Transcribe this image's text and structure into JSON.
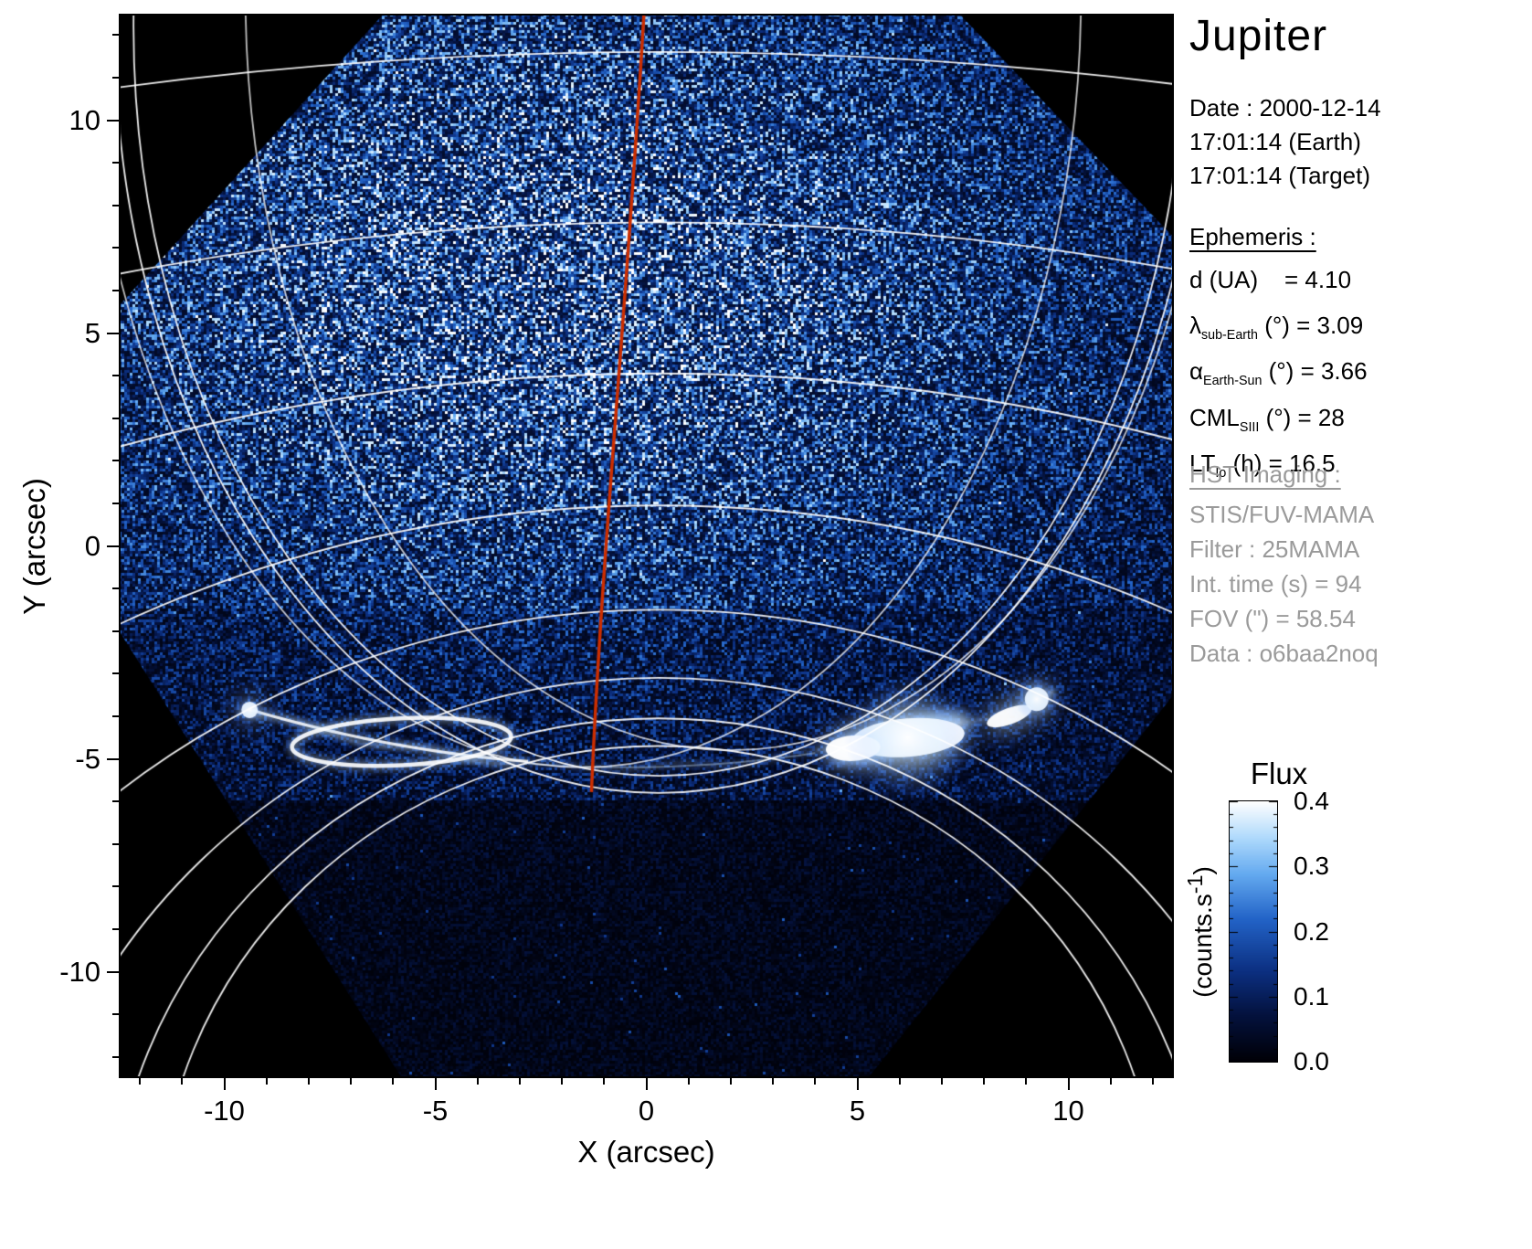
{
  "title": "Jupiter",
  "datetime": {
    "date_line": "Date : 2000-12-14",
    "earth_line": "17:01:14 (Earth)",
    "target_line": "17:01:14 (Target)"
  },
  "ephemeris": {
    "heading": "Ephemeris :",
    "items": [
      {
        "pre": "d (UA)",
        "sub": "",
        "post": "    = 4.10"
      },
      {
        "pre": "λ",
        "sub": "sub-Earth",
        "post": " (°) = 3.09"
      },
      {
        "pre": "α",
        "sub": "Earth-Sun",
        "post": " (°) = 3.66"
      },
      {
        "pre": "CML",
        "sub": "SIII",
        "post": " (°) = 28"
      },
      {
        "pre": "LT",
        "sub": "Io",
        "post": " (h) = 16.5"
      }
    ]
  },
  "hst": {
    "heading": "HST Imaging :",
    "lines": [
      "STIS/FUV-MAMA",
      "Filter : 25MAMA",
      "Int. time (s) = 94",
      "FOV (\") = 58.54",
      "Data : o6baa2noq"
    ]
  },
  "colorbar": {
    "title": "Flux",
    "unit_pre": "(counts.s",
    "unit_sup": "-1",
    "unit_post": ")",
    "ticks": [
      0.0,
      0.1,
      0.2,
      0.3,
      0.4
    ],
    "max": 0.4
  },
  "chart_data": {
    "type": "heatmap",
    "title": "Jupiter",
    "xlabel": "X (arcsec)",
    "ylabel": "Y (arcsec)",
    "xlim": [
      -12.5,
      12.5
    ],
    "ylim": [
      -12.5,
      12.5
    ],
    "xticks": [
      -10,
      -5,
      0,
      5,
      10
    ],
    "yticks": [
      -10,
      -5,
      0,
      5,
      10
    ],
    "flux_range": [
      0.0,
      0.4
    ],
    "flux_unit": "counts.s-1",
    "colormap": "black → dark blue → blue → light blue → white",
    "description": "HST/STIS FUV-MAMA far-ultraviolet image of Jupiter's north polar region; noisy blue detector field (square FOV rotated ~45°, corners of plot black), white planetary limb and latitude/longitude graticule arcs converging toward bottom, bright auroral oval emission arc near y ≈ -4 to -5 arcsec, red central-meridian line from top center to the limb bottom.",
    "features": {
      "aurora_arc": {
        "x_range": [
          -9.6,
          9.6
        ],
        "y_at_x0": -5.2,
        "curvature": "concave up, ends rise to y ≈ -3.6",
        "bright_spots_x": [
          -9.4,
          -5.8,
          6.2,
          9.3
        ]
      },
      "meridian_line": {
        "color": "#cc2e00",
        "top_point": [
          -0.05,
          12.5
        ],
        "bottom_point": [
          -1.3,
          -5.78
        ]
      },
      "limb_bottom_y": -5.8,
      "graticule_color": "#ffffff"
    }
  }
}
